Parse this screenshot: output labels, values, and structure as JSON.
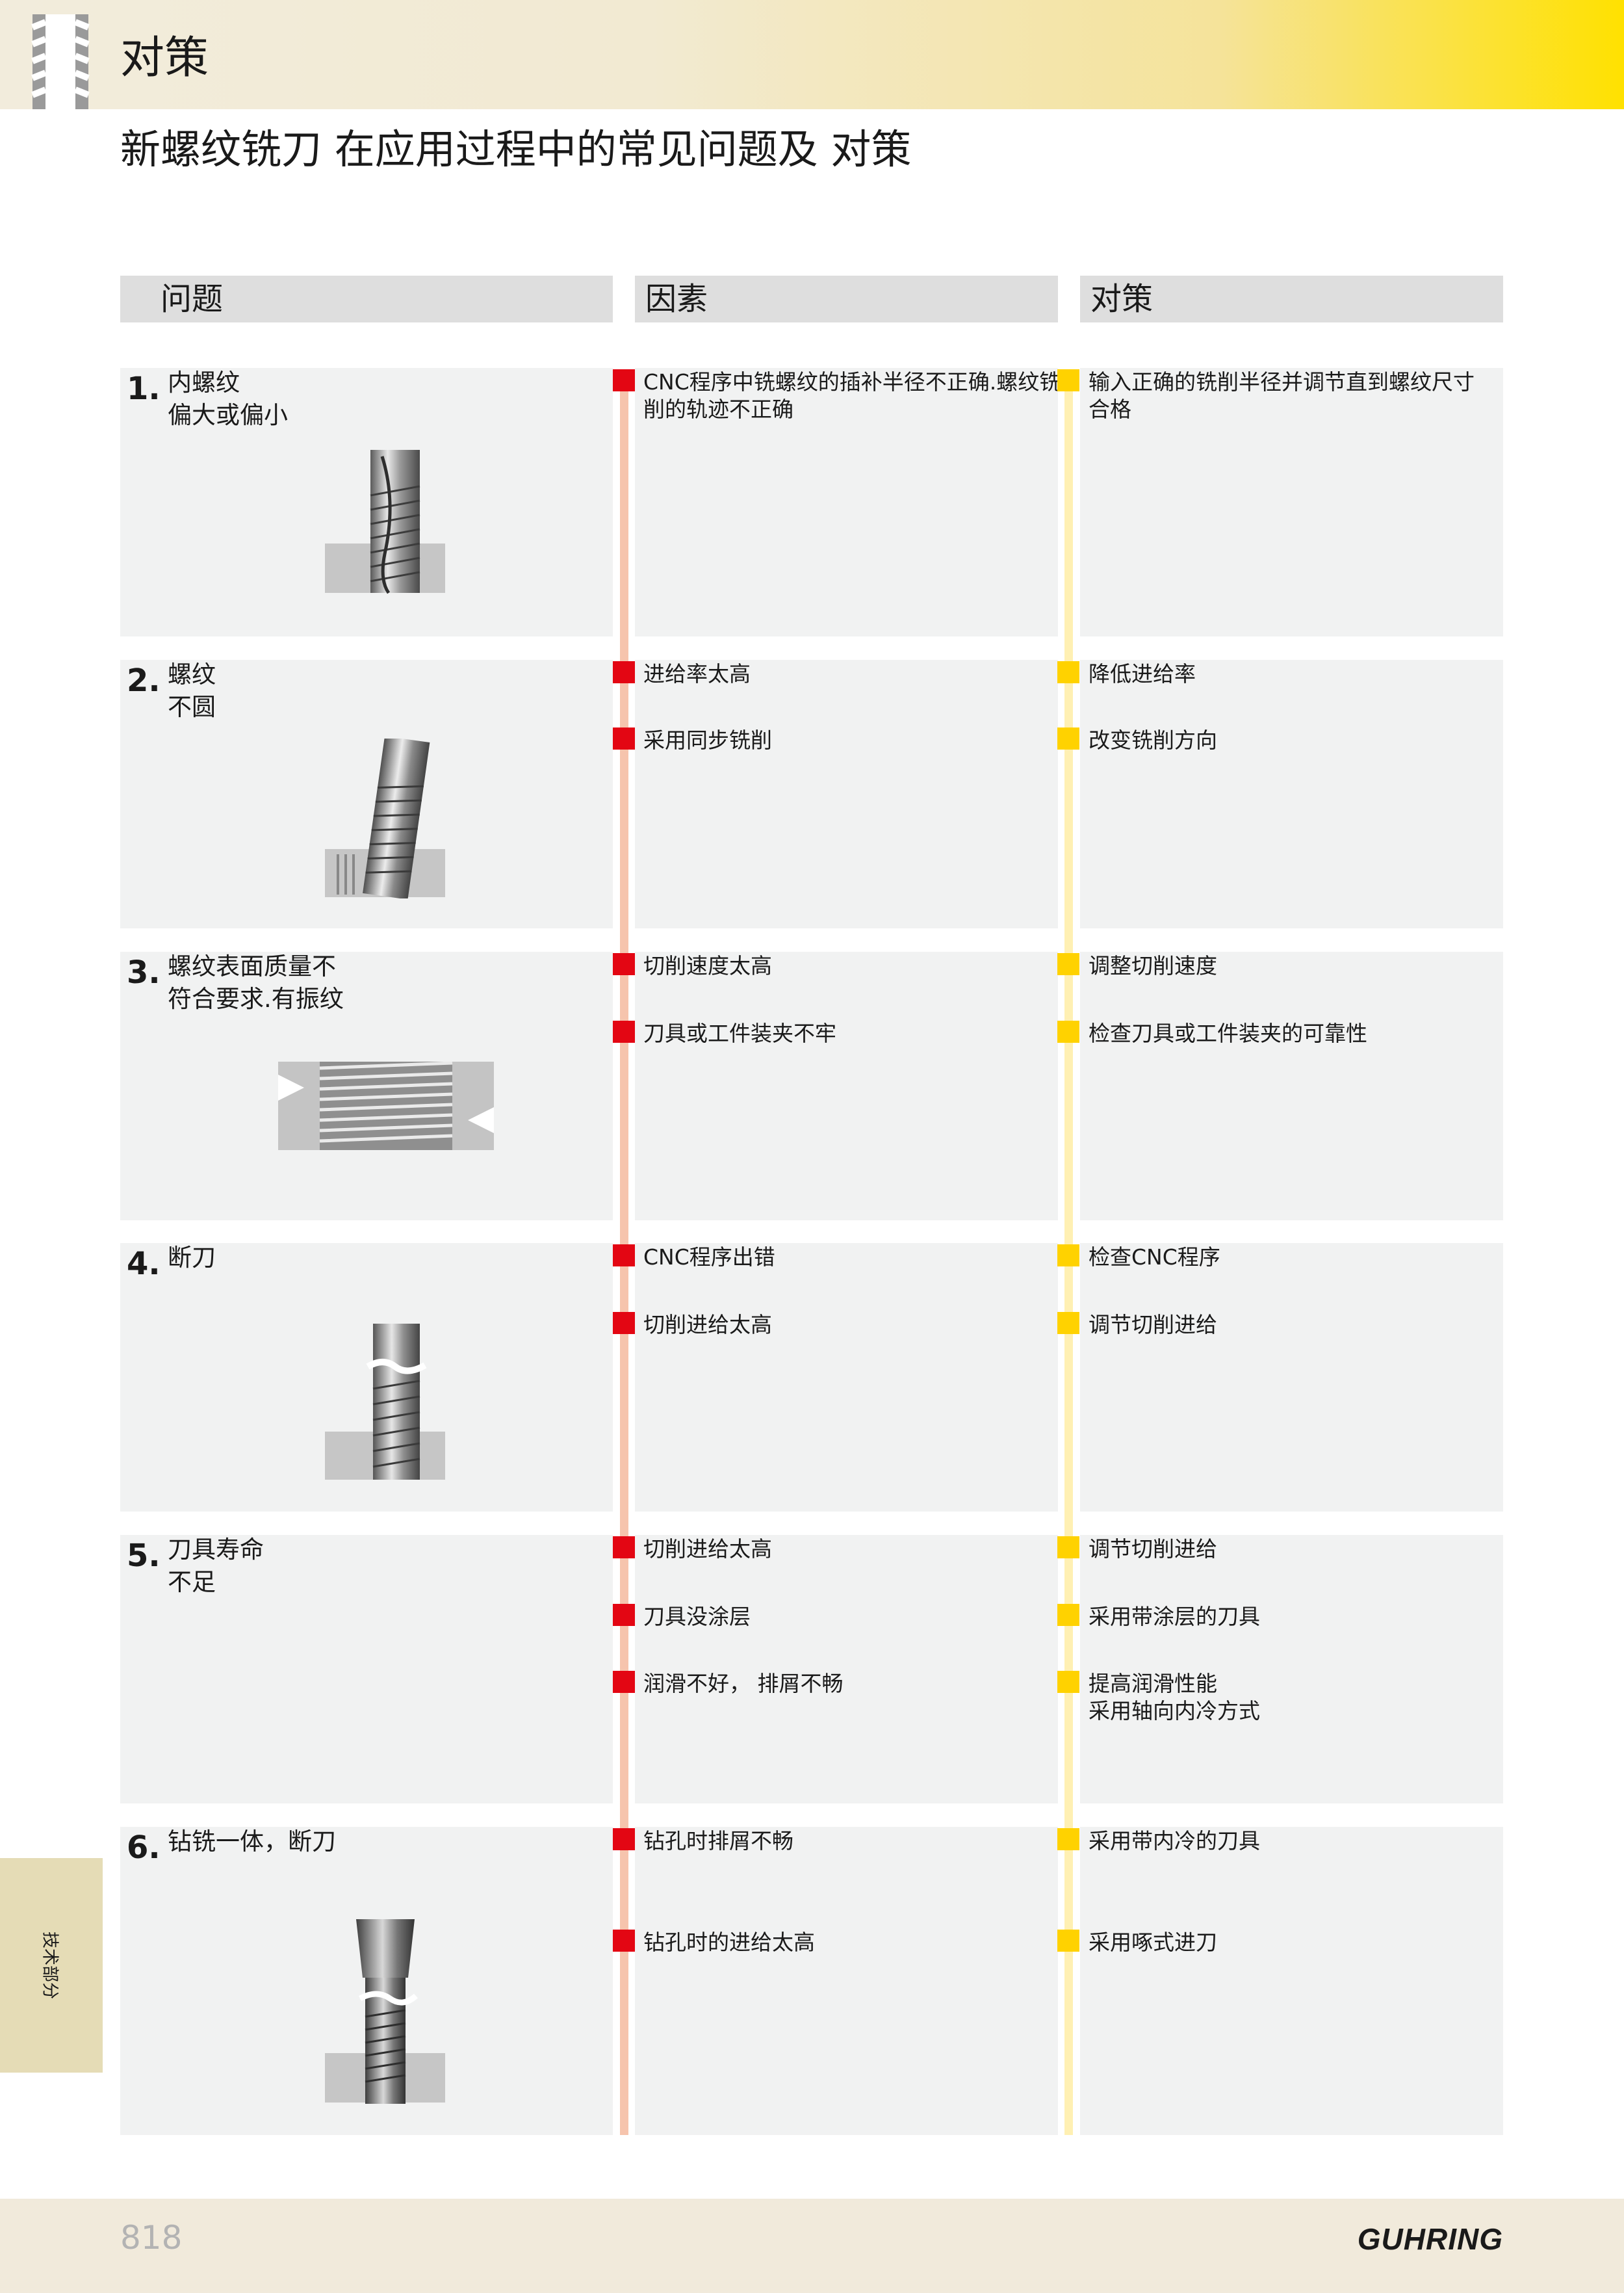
{
  "header": {
    "title": "对策"
  },
  "subtitle": "新螺纹铣刀 在应用过程中的常见问题及 对策",
  "columns": {
    "problem": "问题",
    "cause": "因素",
    "measure": "对策"
  },
  "rows": [
    {
      "num": "1.",
      "problem": "内螺纹\n偏大或偏小",
      "causes": [
        "CNC程序中铣螺纹的插补半径不正确.螺纹铣\n削的轨迹不正确"
      ],
      "measures": [
        "输入正确的铣削半径并调节直到螺纹尺寸\n合格"
      ]
    },
    {
      "num": "2.",
      "problem": "螺纹\n不圆",
      "causes": [
        "进给率太高",
        "采用同步铣削"
      ],
      "measures": [
        "降低进给率",
        "改变铣削方向"
      ]
    },
    {
      "num": "3.",
      "problem": "螺纹表面质量不\n符合要求.有振纹",
      "causes": [
        "切削速度太高",
        "刀具或工件装夹不牢"
      ],
      "measures": [
        "调整切削速度",
        "检查刀具或工件装夹的可靠性"
      ]
    },
    {
      "num": "4.",
      "problem": "断刀",
      "causes": [
        "CNC程序出错",
        "切削进给太高"
      ],
      "measures": [
        "检查CNC程序",
        "调节切削进给"
      ]
    },
    {
      "num": "5.",
      "problem": "刀具寿命\n不足",
      "causes": [
        "切削进给太高",
        "刀具没涂层",
        "润滑不好，  排屑不畅"
      ],
      "measures": [
        "调节切削进给",
        "采用带涂层的刀具",
        "提高润滑性能\n采用轴向内冷方式"
      ]
    },
    {
      "num": "6.",
      "problem": "钻铣一体，断刀",
      "causes": [
        "钻孔时排屑不畅",
        "钻孔时的进给太高"
      ],
      "measures": [
        "采用带内冷的刀具",
        "采用啄式进刀"
      ]
    }
  ],
  "side_tab": "技术部分",
  "footer": {
    "page_number": "818",
    "brand": "GUHRING"
  },
  "colors": {
    "cause_marker": "#e30613",
    "measure_marker": "#ffd200",
    "cell_bg": "#f1f2f2",
    "header_accent": "#ffe100"
  }
}
